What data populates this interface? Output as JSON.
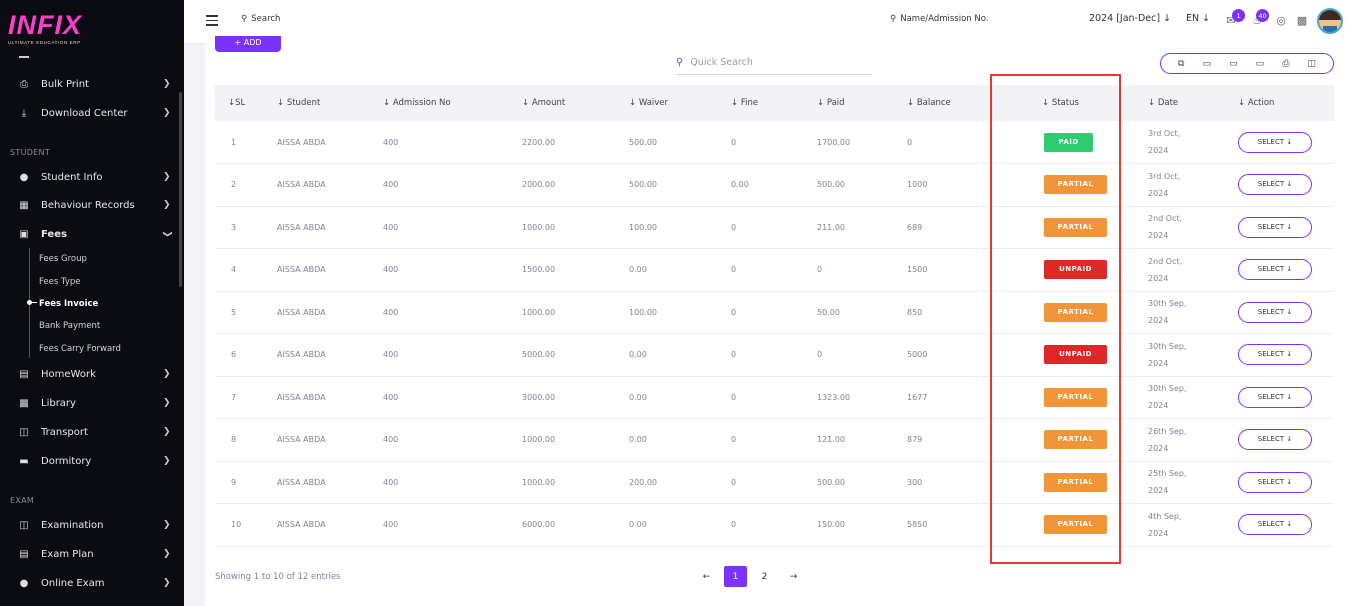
{
  "brand": {
    "logo": "INFIX",
    "tagline": "ULTIMATE EDUCATION ERP"
  },
  "sidebar": {
    "items_top": [
      {
        "label": "Bulk Print",
        "icon": "printer-icon"
      },
      {
        "label": "Download Center",
        "icon": "download-icon"
      }
    ],
    "section_student": "STUDENT",
    "student_items": [
      {
        "label": "Student Info",
        "icon": "user-icon"
      },
      {
        "label": "Behaviour Records",
        "icon": "records-icon"
      },
      {
        "label": "Fees",
        "icon": "money-icon"
      }
    ],
    "fees_sub": [
      "Fees Group",
      "Fees Type",
      "Fees Invoice",
      "Bank Payment",
      "Fees Carry Forward"
    ],
    "more_items": [
      {
        "label": "HomeWork",
        "icon": "book-icon"
      },
      {
        "label": "Library",
        "icon": "library-icon"
      },
      {
        "label": "Transport",
        "icon": "bus-icon"
      },
      {
        "label": "Dormitory",
        "icon": "bed-icon"
      }
    ],
    "section_exam": "EXAM",
    "exam_items": [
      {
        "label": "Examination",
        "icon": "exam-icon"
      },
      {
        "label": "Exam Plan",
        "icon": "plan-icon"
      },
      {
        "label": "Online Exam",
        "icon": "globe-icon"
      }
    ]
  },
  "topbar": {
    "search_label": "Search",
    "search2_label": "Name/Admission No.",
    "year": "2024 [Jan-Dec]",
    "lang": "EN",
    "chat_badge": "1",
    "notif_badge": "40"
  },
  "toolbar": {
    "add_label": "+ ADD",
    "quick_search_placeholder": "Quick Search",
    "export_icons": [
      "copy-icon",
      "csv-icon",
      "excel-icon",
      "pdf-icon",
      "print-icon",
      "columns-icon"
    ]
  },
  "table": {
    "headers": [
      "SL",
      "Student",
      "Admission No",
      "Amount",
      "Waiver",
      "Fine",
      "Paid",
      "Balance",
      "Status",
      "Date",
      "Action"
    ],
    "rows": [
      {
        "sl": "1",
        "student": "AISSA ABDA",
        "adm": "400",
        "amount": "2200.00",
        "waiver": "500.00",
        "fine": "0",
        "paid": "1700.00",
        "balance": "0",
        "status": "PAID",
        "date1": "3rd Oct,",
        "date2": "2024",
        "action": "SELECT"
      },
      {
        "sl": "2",
        "student": "AISSA ABDA",
        "adm": "400",
        "amount": "2000.00",
        "waiver": "500.00",
        "fine": "0.00",
        "paid": "500.00",
        "balance": "1000",
        "status": "PARTIAL",
        "date1": "3rd Oct,",
        "date2": "2024",
        "action": "SELECT"
      },
      {
        "sl": "3",
        "student": "AISSA ABDA",
        "adm": "400",
        "amount": "1000.00",
        "waiver": "100.00",
        "fine": "0",
        "paid": "211.00",
        "balance": "689",
        "status": "PARTIAL",
        "date1": "2nd Oct,",
        "date2": "2024",
        "action": "SELECT"
      },
      {
        "sl": "4",
        "student": "AISSA ABDA",
        "adm": "400",
        "amount": "1500.00",
        "waiver": "0.00",
        "fine": "0",
        "paid": "0",
        "balance": "1500",
        "status": "UNPAID",
        "date1": "2nd Oct,",
        "date2": "2024",
        "action": "SELECT"
      },
      {
        "sl": "5",
        "student": "AISSA ABDA",
        "adm": "400",
        "amount": "1000.00",
        "waiver": "100.00",
        "fine": "0",
        "paid": "50.00",
        "balance": "850",
        "status": "PARTIAL",
        "date1": "30th Sep,",
        "date2": "2024",
        "action": "SELECT"
      },
      {
        "sl": "6",
        "student": "AISSA ABDA",
        "adm": "400",
        "amount": "5000.00",
        "waiver": "0.00",
        "fine": "0",
        "paid": "0",
        "balance": "5000",
        "status": "UNPAID",
        "date1": "30th Sep,",
        "date2": "2024",
        "action": "SELECT"
      },
      {
        "sl": "7",
        "student": "AISSA ABDA",
        "adm": "400",
        "amount": "3000.00",
        "waiver": "0.00",
        "fine": "0",
        "paid": "1323.00",
        "balance": "1677",
        "status": "PARTIAL",
        "date1": "30th Sep,",
        "date2": "2024",
        "action": "SELECT"
      },
      {
        "sl": "8",
        "student": "AISSA ABDA",
        "adm": "400",
        "amount": "1000.00",
        "waiver": "0.00",
        "fine": "0",
        "paid": "121.00",
        "balance": "879",
        "status": "PARTIAL",
        "date1": "26th Sep,",
        "date2": "2024",
        "action": "SELECT"
      },
      {
        "sl": "9",
        "student": "AISSA ABDA",
        "adm": "400",
        "amount": "1000.00",
        "waiver": "200.00",
        "fine": "0",
        "paid": "500.00",
        "balance": "300",
        "status": "PARTIAL",
        "date1": "25th Sep,",
        "date2": "2024",
        "action": "SELECT"
      },
      {
        "sl": "10",
        "student": "AISSA ABDA",
        "adm": "400",
        "amount": "6000.00",
        "waiver": "0.00",
        "fine": "0",
        "paid": "150.00",
        "balance": "5850",
        "status": "PARTIAL",
        "date1": "4th Sep,",
        "date2": "2024",
        "action": "SELECT"
      }
    ],
    "status_colors": {
      "PAID": "#2ecc71",
      "PARTIAL": "#f29539",
      "UNPAID": "#e02727"
    }
  },
  "footer": {
    "showing": "Showing 1 to 10 of 12 entries",
    "pages": [
      "1",
      "2"
    ],
    "current_page": "1"
  },
  "colors": {
    "accent": "#7c32ff",
    "highlight": "#e53935"
  }
}
